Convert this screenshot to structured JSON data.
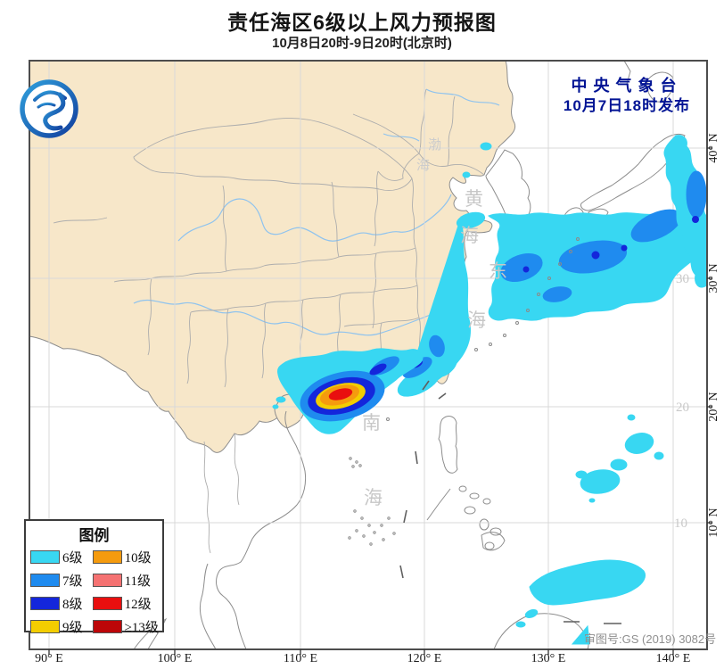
{
  "header": {
    "title": "责任海区6级以上风力预报图",
    "subtitle": "10月8日20时-9日20时(北京时)"
  },
  "issuer": {
    "agency": "中央气象台",
    "issued": "10月7日18时发布"
  },
  "map": {
    "sea_labels": {
      "bohai": [
        "渤",
        "海"
      ],
      "yellow_sea": [
        "黄",
        "海"
      ],
      "east_china_sea": [
        "东",
        "海"
      ],
      "south_china_sea": [
        "南",
        "海"
      ]
    },
    "inner_lat_labels": [
      "30",
      "20",
      "10"
    ],
    "land_color": "#F7E7C9",
    "sea_color": "#FFFFFF"
  },
  "axes": {
    "longitude": [
      "90° E",
      "100° E",
      "110° E",
      "120° E",
      "130° E",
      "140° E"
    ],
    "latitude": [
      "40° N",
      "30° N",
      "20° N",
      "10° N"
    ]
  },
  "legend": {
    "title": "图例",
    "items": [
      {
        "label": "6级",
        "color": "#38D7F2",
        "class": "w6"
      },
      {
        "label": "7级",
        "color": "#1F8BEF",
        "class": "w7"
      },
      {
        "label": "8级",
        "color": "#1426DB",
        "class": "w8"
      },
      {
        "label": "9级",
        "color": "#F3CD00",
        "class": "w9"
      },
      {
        "label": "10级",
        "color": "#F59B0E",
        "class": "w10"
      },
      {
        "label": "11级",
        "color": "#F57272",
        "class": "w11"
      },
      {
        "label": "12级",
        "color": "#E90F0F",
        "class": "w12"
      },
      {
        "label": "≥13级",
        "color": "#BC0608",
        "class": "w13"
      }
    ]
  },
  "footer": {
    "map_license": "审图号:GS (2019) 3082号"
  }
}
